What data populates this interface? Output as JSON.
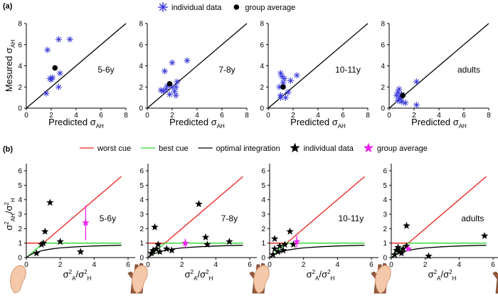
{
  "panel_labels": [
    "(a)",
    "(b)"
  ],
  "chart_data": [
    {
      "type": "scatter",
      "annotation": "5-6y",
      "legend": "top",
      "xlim": [
        0,
        8
      ],
      "ylim": [
        0,
        8
      ],
      "xticks": [
        0,
        2,
        4,
        6,
        8
      ],
      "yticks": [
        0,
        2,
        4,
        6,
        8
      ],
      "xlabel": [
        {
          "t": "Predicted σ"
        },
        {
          "t": "AH",
          "shift": "sub"
        }
      ],
      "ylabel": [
        {
          "t": "Mesured σ"
        },
        {
          "t": "AH",
          "shift": "sub"
        }
      ],
      "series": [
        {
          "color": "#000000",
          "marker": "line",
          "x": [
            0,
            8
          ],
          "values": [
            0,
            8
          ]
        },
        {
          "name": "individual data",
          "color": "#3a3ad8",
          "marker": "asterisk",
          "x": [
            1.7,
            2.6,
            3.5,
            2.0,
            2.1,
            2.7,
            1.6,
            2.6,
            1.9
          ],
          "values": [
            5.5,
            6.5,
            6.5,
            2.7,
            2.9,
            3.3,
            1.4,
            2.0,
            2.8
          ]
        },
        {
          "name": "group average",
          "color": "#000000",
          "marker": "dot",
          "x": [
            2.3
          ],
          "values": [
            3.8
          ]
        }
      ]
    },
    {
      "type": "scatter",
      "annotation": "7-8y",
      "xlim": [
        0,
        8
      ],
      "ylim": [
        0,
        8
      ],
      "xticks": [
        0,
        2,
        4,
        6,
        8
      ],
      "yticks": [
        0,
        2,
        4,
        6,
        8
      ],
      "xlabel": [
        {
          "t": "Predicted σ"
        },
        {
          "t": "AH",
          "shift": "sub"
        }
      ],
      "series": [
        {
          "color": "#000000",
          "marker": "line",
          "x": [
            0,
            8
          ],
          "values": [
            0,
            8
          ]
        },
        {
          "color": "#3a3ad8",
          "marker": "asterisk",
          "x": [
            3.2,
            2.0,
            1.4,
            1.1,
            1.3,
            1.6,
            2.0,
            2.4,
            2.2,
            1.8,
            2.3,
            1.5,
            2.3
          ],
          "values": [
            4.5,
            4.3,
            3.5,
            1.7,
            1.6,
            2.1,
            2.0,
            2.5,
            1.6,
            1.3,
            1.2,
            1.8,
            2.0
          ]
        },
        {
          "color": "#000000",
          "marker": "dot",
          "x": [
            1.8
          ],
          "values": [
            2.3
          ]
        }
      ]
    },
    {
      "type": "scatter",
      "annotation": "10-11y",
      "xlim": [
        0,
        8
      ],
      "ylim": [
        0,
        8
      ],
      "xticks": [
        0,
        2,
        4,
        6,
        8
      ],
      "yticks": [
        0,
        2,
        4,
        6,
        8
      ],
      "xlabel": [
        {
          "t": "Predicted σ"
        },
        {
          "t": "AH",
          "shift": "sub"
        }
      ],
      "series": [
        {
          "color": "#000000",
          "marker": "line",
          "x": [
            0,
            8
          ],
          "values": [
            0,
            8
          ]
        },
        {
          "color": "#3a3ad8",
          "marker": "asterisk",
          "x": [
            1.0,
            1.1,
            1.3,
            2.3,
            1.8,
            0.9,
            1.0,
            1.6,
            1.4,
            1.0,
            1.2
          ],
          "values": [
            3.3,
            3.0,
            2.8,
            3.1,
            2.6,
            2.0,
            1.2,
            1.5,
            1.0,
            1.0,
            2.4
          ]
        },
        {
          "color": "#000000",
          "marker": "dot",
          "x": [
            1.2
          ],
          "values": [
            2.0
          ]
        }
      ]
    },
    {
      "type": "scatter",
      "annotation": "adults",
      "xlim": [
        0,
        8
      ],
      "ylim": [
        0,
        8
      ],
      "xticks": [
        0,
        2,
        4,
        6,
        8
      ],
      "yticks": [
        0,
        2,
        4,
        6,
        8
      ],
      "xlabel": [
        {
          "t": "Predicted σ"
        },
        {
          "t": "AH",
          "shift": "sub"
        }
      ],
      "series": [
        {
          "color": "#000000",
          "marker": "line",
          "x": [
            0,
            8
          ],
          "values": [
            0,
            8
          ]
        },
        {
          "color": "#3a3ad8",
          "marker": "asterisk",
          "x": [
            0.8,
            0.7,
            1.0,
            0.6,
            0.9,
            0.7,
            1.0,
            2.2,
            2.2,
            1.3,
            0.9
          ],
          "values": [
            1.8,
            1.5,
            1.3,
            1.2,
            1.0,
            0.7,
            0.6,
            2.5,
            0.3,
            0.5,
            0.9
          ]
        },
        {
          "color": "#000000",
          "marker": "dot",
          "x": [
            1.1
          ],
          "values": [
            1.2
          ]
        }
      ]
    },
    {
      "type": "scatter",
      "annotation": "5-6y",
      "legend": "top",
      "xlim": [
        0,
        6
      ],
      "ylim": [
        0,
        6
      ],
      "xticks": [
        0,
        2,
        4,
        6
      ],
      "yticks": [
        0,
        1,
        2,
        3,
        4,
        5,
        6
      ],
      "xlabel": [
        {
          "t": "σ"
        },
        {
          "t": "2",
          "shift": "sup"
        },
        {
          "t": "A",
          "shift": "sub"
        },
        {
          "t": "/σ"
        },
        {
          "t": "2",
          "shift": "sup"
        },
        {
          "t": "H",
          "shift": "sub"
        }
      ],
      "ylabel": [
        {
          "t": "σ"
        },
        {
          "t": "2",
          "shift": "sup"
        },
        {
          "t": "AH",
          "shift": "sub"
        },
        {
          "t": "/σ"
        },
        {
          "t": "2",
          "shift": "sup"
        },
        {
          "t": "H",
          "shift": "sub"
        }
      ],
      "series": [
        {
          "name": "worst cue",
          "color": "#e8201c",
          "marker": "line",
          "x": [
            0,
            1,
            5.6
          ],
          "values": [
            1,
            1,
            5.6
          ]
        },
        {
          "name": "best cue",
          "color": "#2bd42b",
          "marker": "line",
          "x": [
            0,
            1,
            5.6
          ],
          "values": [
            0,
            1,
            1
          ]
        },
        {
          "name": "optimal integration",
          "color": "#000000",
          "marker": "line",
          "x": [
            0,
            0.25,
            0.5,
            1,
            1.5,
            2,
            3,
            4,
            5.6
          ],
          "values": [
            0,
            0.2,
            0.33,
            0.5,
            0.6,
            0.67,
            0.75,
            0.8,
            0.85
          ]
        },
        {
          "name": "individual data",
          "color": "#000000",
          "marker": "star",
          "x": [
            1.4,
            1.1,
            0.9,
            2.0,
            0.6,
            1.0,
            3.2
          ],
          "values": [
            3.8,
            1.8,
            0.9,
            1.1,
            0.3,
            1.0,
            0.4
          ]
        },
        {
          "name": "group average",
          "color": "#ee22ee",
          "marker": "star",
          "x": [
            3.5
          ],
          "values": [
            2.4
          ],
          "errors": [
            1.2
          ]
        }
      ]
    },
    {
      "type": "scatter",
      "annotation": "7-8y",
      "xlim": [
        0,
        6
      ],
      "ylim": [
        0,
        6
      ],
      "xticks": [
        0,
        2,
        4,
        6
      ],
      "yticks": [
        0,
        1,
        2,
        3,
        4,
        5,
        6
      ],
      "xlabel": [
        {
          "t": "σ"
        },
        {
          "t": "2",
          "shift": "sup"
        },
        {
          "t": "A",
          "shift": "sub"
        },
        {
          "t": "/σ"
        },
        {
          "t": "2",
          "shift": "sup"
        },
        {
          "t": "H",
          "shift": "sub"
        }
      ],
      "series": [
        {
          "color": "#e8201c",
          "marker": "line",
          "x": [
            0,
            1,
            5.6
          ],
          "values": [
            1,
            1,
            5.6
          ]
        },
        {
          "color": "#2bd42b",
          "marker": "line",
          "x": [
            0,
            1,
            5.6
          ],
          "values": [
            0,
            1,
            1
          ]
        },
        {
          "color": "#000000",
          "marker": "line",
          "x": [
            0,
            0.25,
            0.5,
            1,
            1.5,
            2,
            3,
            4,
            5.6
          ],
          "values": [
            0,
            0.2,
            0.33,
            0.5,
            0.6,
            0.67,
            0.75,
            0.8,
            0.85
          ]
        },
        {
          "color": "#000000",
          "marker": "star",
          "x": [
            3.0,
            0.4,
            3.4,
            4.8,
            0.3,
            0.5,
            0.7,
            1.1,
            1.4,
            3.5,
            0.2,
            0.6
          ],
          "values": [
            3.7,
            2.1,
            1.4,
            1.1,
            0.5,
            0.6,
            0.4,
            0.6,
            0.5,
            0.9,
            0.3,
            0.9
          ]
        },
        {
          "color": "#ee22ee",
          "marker": "star",
          "x": [
            2.2
          ],
          "values": [
            1.0
          ],
          "errors": [
            0.3
          ]
        }
      ]
    },
    {
      "type": "scatter",
      "annotation": "10-11y",
      "xlim": [
        0,
        6
      ],
      "ylim": [
        0,
        6
      ],
      "xticks": [
        0,
        2,
        4,
        6
      ],
      "yticks": [
        0,
        1,
        2,
        3,
        4,
        5,
        6
      ],
      "xlabel": [
        {
          "t": "σ"
        },
        {
          "t": "2",
          "shift": "sup"
        },
        {
          "t": "A",
          "shift": "sub"
        },
        {
          "t": "/σ"
        },
        {
          "t": "2",
          "shift": "sup"
        },
        {
          "t": "H",
          "shift": "sub"
        }
      ],
      "series": [
        {
          "color": "#e8201c",
          "marker": "line",
          "x": [
            0,
            1,
            5.6
          ],
          "values": [
            1,
            1,
            5.6
          ]
        },
        {
          "color": "#2bd42b",
          "marker": "line",
          "x": [
            0,
            1,
            5.6
          ],
          "values": [
            0,
            1,
            1
          ]
        },
        {
          "color": "#000000",
          "marker": "line",
          "x": [
            0,
            0.25,
            0.5,
            1,
            1.5,
            2,
            3,
            4,
            5.6
          ],
          "values": [
            0,
            0.2,
            0.33,
            0.5,
            0.6,
            0.67,
            0.75,
            0.8,
            0.85
          ]
        },
        {
          "color": "#000000",
          "marker": "star",
          "x": [
            1.2,
            0.3,
            0.9,
            1.4,
            0.3,
            0.5,
            0.8,
            0.6,
            0.2
          ],
          "values": [
            1.8,
            1.3,
            0.9,
            0.9,
            0.6,
            0.4,
            0.5,
            0.8,
            0.2
          ]
        },
        {
          "color": "#ee22ee",
          "marker": "star",
          "x": [
            1.6
          ],
          "values": [
            1.1
          ],
          "errors": [
            0.4
          ]
        }
      ]
    },
    {
      "type": "scatter",
      "annotation": "adults",
      "xlim": [
        0,
        6
      ],
      "ylim": [
        0,
        6
      ],
      "xticks": [
        0,
        2,
        4,
        6
      ],
      "yticks": [
        0,
        1,
        2,
        3,
        4,
        5,
        6
      ],
      "xlabel": [
        {
          "t": "σ"
        },
        {
          "t": "2",
          "shift": "sup"
        },
        {
          "t": "A",
          "shift": "sub"
        },
        {
          "t": "/σ"
        },
        {
          "t": "2",
          "shift": "sup"
        },
        {
          "t": "H",
          "shift": "sub"
        }
      ],
      "series": [
        {
          "color": "#e8201c",
          "marker": "line",
          "x": [
            0,
            1,
            5.6
          ],
          "values": [
            1,
            1,
            5.6
          ]
        },
        {
          "color": "#2bd42b",
          "marker": "line",
          "x": [
            0,
            1,
            5.6
          ],
          "values": [
            0,
            1,
            1
          ]
        },
        {
          "color": "#000000",
          "marker": "line",
          "x": [
            0,
            0.25,
            0.5,
            1,
            1.5,
            2,
            3,
            4,
            5.6
          ],
          "values": [
            0,
            0.2,
            0.33,
            0.5,
            0.6,
            0.67,
            0.75,
            0.8,
            0.85
          ]
        },
        {
          "color": "#000000",
          "marker": "star",
          "x": [
            0.9,
            5.5,
            0.4,
            0.5,
            0.7,
            0.3,
            0.9,
            0.2,
            2.2,
            0.6
          ],
          "values": [
            2.2,
            1.5,
            0.7,
            0.4,
            0.6,
            0.5,
            0.8,
            0.2,
            0.1,
            0.3
          ]
        },
        {
          "color": "#ee22ee",
          "marker": "star",
          "x": [
            1.0
          ],
          "values": [
            0.6
          ],
          "errors": [
            0.1
          ]
        }
      ]
    }
  ]
}
